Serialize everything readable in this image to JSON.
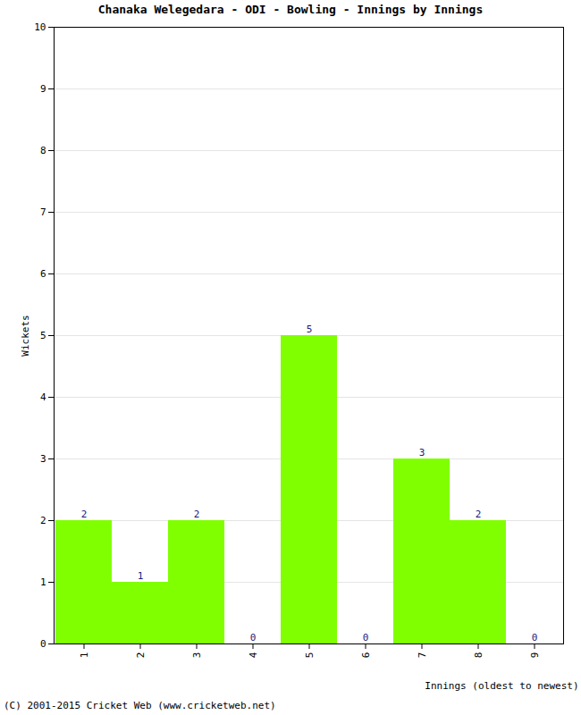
{
  "chart_data": {
    "type": "bar",
    "title": "Chanaka Welegedara - ODI - Bowling - Innings by Innings",
    "x_label": "Innings (oldest to newest)",
    "y_label": "Wickets",
    "caption": "(C) 2001-2015 Cricket Web (www.cricketweb.net)",
    "categories": [
      "1",
      "2",
      "3",
      "4",
      "5",
      "6",
      "7",
      "8",
      "9"
    ],
    "values": [
      2,
      1,
      2,
      0,
      5,
      0,
      3,
      2,
      0
    ],
    "color": "#80ff00",
    "ylim": [
      0,
      10
    ],
    "yticks": [
      0,
      1,
      2,
      3,
      4,
      5,
      6,
      7,
      8,
      9,
      10
    ],
    "grid": true,
    "data_labels": true
  }
}
